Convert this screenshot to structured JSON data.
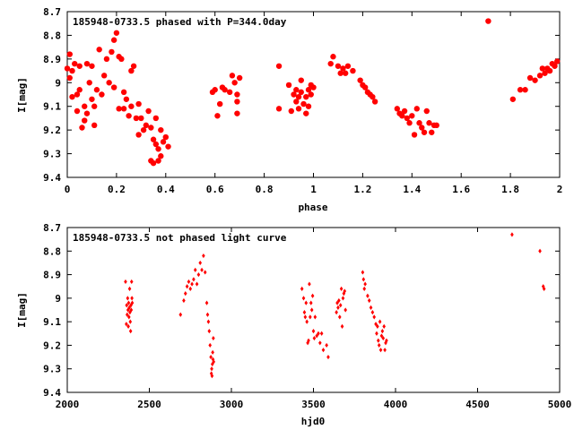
{
  "colors": {
    "points": "#ff0000",
    "axis": "#000000",
    "background": "#ffffff"
  },
  "chart_data": [
    {
      "type": "scatter",
      "title": "185948-0733.5 phased with P=344.0day",
      "xlabel": "phase",
      "ylabel": "I[mag]",
      "xlim": [
        0,
        2
      ],
      "ylim": [
        8.7,
        9.4
      ],
      "y_inverted": true,
      "marker": "filled-circle",
      "xticks": [
        "0",
        "0.2",
        "0.4",
        "0.6",
        "0.8",
        "1",
        "1.2",
        "1.4",
        "1.6",
        "1.8",
        "2"
      ],
      "yticks": [
        "8.7",
        "8.8",
        "8.9",
        "9",
        "9.1",
        "9.2",
        "9.3",
        "9.4"
      ],
      "series": [
        {
          "points": [
            [
              0.0,
              8.94
            ],
            [
              0.01,
              8.88
            ],
            [
              0.01,
              8.98
            ],
            [
              0.02,
              8.95
            ],
            [
              0.02,
              9.06
            ],
            [
              0.03,
              8.92
            ],
            [
              0.04,
              9.05
            ],
            [
              0.04,
              9.12
            ],
            [
              0.05,
              8.93
            ],
            [
              0.05,
              9.03
            ],
            [
              0.06,
              9.19
            ],
            [
              0.07,
              9.1
            ],
            [
              0.07,
              9.16
            ],
            [
              0.08,
              8.92
            ],
            [
              0.08,
              9.13
            ],
            [
              0.09,
              9.0
            ],
            [
              0.1,
              8.93
            ],
            [
              0.1,
              9.07
            ],
            [
              0.11,
              9.18
            ],
            [
              0.11,
              9.1
            ],
            [
              0.12,
              9.03
            ],
            [
              0.13,
              8.86
            ],
            [
              0.14,
              9.05
            ],
            [
              0.15,
              8.97
            ],
            [
              0.16,
              8.9
            ],
            [
              0.17,
              9.0
            ],
            [
              0.18,
              8.87
            ],
            [
              0.19,
              8.82
            ],
            [
              0.19,
              9.02
            ],
            [
              0.2,
              8.79
            ],
            [
              0.21,
              8.89
            ],
            [
              0.21,
              9.11
            ],
            [
              0.22,
              8.9
            ],
            [
              0.23,
              9.04
            ],
            [
              0.23,
              9.11
            ],
            [
              0.24,
              9.07
            ],
            [
              0.25,
              9.14
            ],
            [
              0.26,
              8.95
            ],
            [
              0.26,
              9.1
            ],
            [
              0.27,
              8.93
            ],
            [
              0.28,
              9.15
            ],
            [
              0.29,
              9.09
            ],
            [
              0.29,
              9.22
            ],
            [
              0.3,
              9.15
            ],
            [
              0.31,
              9.2
            ],
            [
              0.32,
              9.18
            ],
            [
              0.33,
              9.12
            ],
            [
              0.34,
              9.19
            ],
            [
              0.34,
              9.33
            ],
            [
              0.35,
              9.34
            ],
            [
              0.35,
              9.24
            ],
            [
              0.36,
              9.15
            ],
            [
              0.36,
              9.26
            ],
            [
              0.37,
              9.28
            ],
            [
              0.37,
              9.33
            ],
            [
              0.38,
              9.31
            ],
            [
              0.38,
              9.2
            ],
            [
              0.39,
              9.25
            ],
            [
              0.4,
              9.23
            ],
            [
              0.41,
              9.27
            ],
            [
              0.59,
              9.04
            ],
            [
              0.6,
              9.03
            ],
            [
              0.61,
              9.14
            ],
            [
              0.62,
              9.09
            ],
            [
              0.63,
              9.02
            ],
            [
              0.64,
              9.03
            ],
            [
              0.66,
              9.04
            ],
            [
              0.67,
              8.97
            ],
            [
              0.68,
              9.0
            ],
            [
              0.69,
              9.08
            ],
            [
              0.69,
              9.13
            ],
            [
              0.69,
              9.05
            ],
            [
              0.7,
              8.98
            ],
            [
              0.86,
              8.93
            ],
            [
              0.86,
              9.11
            ],
            [
              0.9,
              9.01
            ],
            [
              0.91,
              9.12
            ],
            [
              0.92,
              9.05
            ],
            [
              0.93,
              9.03
            ],
            [
              0.93,
              9.08
            ],
            [
              0.94,
              9.06
            ],
            [
              0.94,
              9.11
            ],
            [
              0.95,
              9.04
            ],
            [
              0.95,
              8.99
            ],
            [
              0.96,
              9.09
            ],
            [
              0.97,
              9.06
            ],
            [
              0.97,
              9.13
            ],
            [
              0.98,
              9.03
            ],
            [
              0.98,
              9.1
            ],
            [
              0.99,
              9.05
            ],
            [
              0.99,
              9.01
            ],
            [
              1.0,
              9.02
            ],
            [
              1.07,
              8.92
            ],
            [
              1.08,
              8.89
            ],
            [
              1.1,
              8.93
            ],
            [
              1.11,
              8.96
            ],
            [
              1.12,
              8.94
            ],
            [
              1.13,
              8.96
            ],
            [
              1.14,
              8.93
            ],
            [
              1.16,
              8.95
            ],
            [
              1.19,
              8.99
            ],
            [
              1.2,
              9.01
            ],
            [
              1.21,
              9.02
            ],
            [
              1.22,
              9.04
            ],
            [
              1.23,
              9.05
            ],
            [
              1.24,
              9.06
            ],
            [
              1.25,
              9.08
            ],
            [
              1.34,
              9.11
            ],
            [
              1.35,
              9.13
            ],
            [
              1.36,
              9.14
            ],
            [
              1.37,
              9.12
            ],
            [
              1.38,
              9.15
            ],
            [
              1.39,
              9.17
            ],
            [
              1.4,
              9.14
            ],
            [
              1.41,
              9.22
            ],
            [
              1.42,
              9.11
            ],
            [
              1.43,
              9.17
            ],
            [
              1.44,
              9.19
            ],
            [
              1.45,
              9.21
            ],
            [
              1.46,
              9.12
            ],
            [
              1.47,
              9.17
            ],
            [
              1.48,
              9.21
            ],
            [
              1.49,
              9.18
            ],
            [
              1.5,
              9.18
            ],
            [
              1.71,
              8.74
            ],
            [
              1.81,
              9.07
            ],
            [
              1.84,
              9.03
            ],
            [
              1.86,
              9.03
            ],
            [
              1.88,
              8.98
            ],
            [
              1.9,
              8.99
            ],
            [
              1.92,
              8.97
            ],
            [
              1.93,
              8.94
            ],
            [
              1.94,
              8.96
            ],
            [
              1.95,
              8.94
            ],
            [
              1.96,
              8.95
            ],
            [
              1.97,
              8.92
            ],
            [
              1.98,
              8.93
            ],
            [
              1.99,
              8.91
            ]
          ]
        }
      ]
    },
    {
      "type": "scatter",
      "title": "185948-0733.5 not phased light curve",
      "xlabel": "hjd0",
      "ylabel": "I[mag]",
      "xlim": [
        2000,
        5000
      ],
      "ylim": [
        8.7,
        9.4
      ],
      "y_inverted": true,
      "marker": "small-diamond",
      "xticks": [
        "2000",
        "2500",
        "3000",
        "3500",
        "4000",
        "4500",
        "5000"
      ],
      "yticks": [
        "8.7",
        "8.8",
        "8.9",
        "9",
        "9.1",
        "9.2",
        "9.3",
        "9.4"
      ],
      "series": [
        {
          "points": [
            [
              2355,
              8.93
            ],
            [
              2360,
              9.11
            ],
            [
              2362,
              9.03
            ],
            [
              2365,
              9.07
            ],
            [
              2368,
              9.0
            ],
            [
              2370,
              9.05
            ],
            [
              2372,
              9.12
            ],
            [
              2374,
              9.02
            ],
            [
              2376,
              9.08
            ],
            [
              2378,
              9.04
            ],
            [
              2380,
              8.96
            ],
            [
              2382,
              9.06
            ],
            [
              2384,
              9.1
            ],
            [
              2386,
              9.14
            ],
            [
              2388,
              9.03
            ],
            [
              2390,
              9.05
            ],
            [
              2392,
              8.93
            ],
            [
              2394,
              9.0
            ],
            [
              2396,
              9.02
            ],
            [
              2690,
              9.07
            ],
            [
              2710,
              9.01
            ],
            [
              2720,
              8.98
            ],
            [
              2730,
              8.95
            ],
            [
              2740,
              8.93
            ],
            [
              2750,
              8.96
            ],
            [
              2760,
              8.94
            ],
            [
              2770,
              8.92
            ],
            [
              2780,
              8.88
            ],
            [
              2790,
              8.94
            ],
            [
              2800,
              8.9
            ],
            [
              2810,
              8.85
            ],
            [
              2820,
              8.88
            ],
            [
              2830,
              8.82
            ],
            [
              2840,
              8.89
            ],
            [
              2850,
              9.02
            ],
            [
              2855,
              9.07
            ],
            [
              2860,
              9.1
            ],
            [
              2865,
              9.14
            ],
            [
              2870,
              9.2
            ],
            [
              2875,
              9.25
            ],
            [
              2878,
              9.32
            ],
            [
              2880,
              9.3
            ],
            [
              2882,
              9.33
            ],
            [
              2884,
              9.28
            ],
            [
              2886,
              9.23
            ],
            [
              2888,
              9.26
            ],
            [
              2890,
              9.17
            ],
            [
              2892,
              9.27
            ],
            [
              3430,
              8.96
            ],
            [
              3440,
              9.0
            ],
            [
              3445,
              9.06
            ],
            [
              3450,
              9.08
            ],
            [
              3455,
              9.02
            ],
            [
              3460,
              9.1
            ],
            [
              3465,
              9.19
            ],
            [
              3470,
              9.18
            ],
            [
              3475,
              8.94
            ],
            [
              3480,
              9.08
            ],
            [
              3485,
              9.02
            ],
            [
              3490,
              9.05
            ],
            [
              3495,
              8.99
            ],
            [
              3500,
              9.14
            ],
            [
              3505,
              9.17
            ],
            [
              3510,
              9.08
            ],
            [
              3520,
              9.16
            ],
            [
              3530,
              9.15
            ],
            [
              3540,
              9.19
            ],
            [
              3550,
              9.15
            ],
            [
              3560,
              9.22
            ],
            [
              3580,
              9.2
            ],
            [
              3590,
              9.25
            ],
            [
              3640,
              9.06
            ],
            [
              3645,
              9.02
            ],
            [
              3650,
              9.04
            ],
            [
              3655,
              9.01
            ],
            [
              3660,
              9.08
            ],
            [
              3665,
              9.03
            ],
            [
              3670,
              8.96
            ],
            [
              3675,
              9.12
            ],
            [
              3680,
              9.0
            ],
            [
              3685,
              8.98
            ],
            [
              3690,
              8.97
            ],
            [
              3695,
              9.05
            ],
            [
              3800,
              8.89
            ],
            [
              3805,
              8.92
            ],
            [
              3810,
              8.96
            ],
            [
              3815,
              8.94
            ],
            [
              3830,
              8.99
            ],
            [
              3840,
              9.01
            ],
            [
              3850,
              9.04
            ],
            [
              3860,
              9.06
            ],
            [
              3870,
              9.08
            ],
            [
              3880,
              9.11
            ],
            [
              3885,
              9.15
            ],
            [
              3890,
              9.12
            ],
            [
              3895,
              9.18
            ],
            [
              3900,
              9.2
            ],
            [
              3905,
              9.1
            ],
            [
              3910,
              9.22
            ],
            [
              3915,
              9.16
            ],
            [
              3920,
              9.14
            ],
            [
              3925,
              9.17
            ],
            [
              3930,
              9.12
            ],
            [
              3935,
              9.22
            ],
            [
              3940,
              9.19
            ],
            [
              3945,
              9.18
            ],
            [
              4710,
              8.73
            ],
            [
              4880,
              8.8
            ],
            [
              4900,
              8.95
            ],
            [
              4905,
              8.96
            ]
          ]
        }
      ]
    }
  ]
}
